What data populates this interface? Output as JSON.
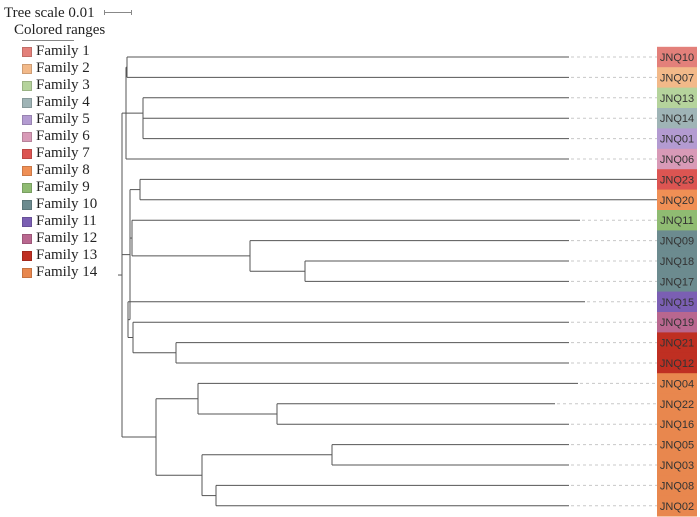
{
  "scale": {
    "label": "Tree scale 0.01"
  },
  "legend": {
    "title": "Colored ranges",
    "items": [
      {
        "label": "Family 1",
        "color": "#e3807a"
      },
      {
        "label": "Family 2",
        "color": "#f2b989"
      },
      {
        "label": "Family 3",
        "color": "#b5d39c"
      },
      {
        "label": "Family 4",
        "color": "#9fb4b6"
      },
      {
        "label": "Family 5",
        "color": "#b39bd1"
      },
      {
        "label": "Family 6",
        "color": "#d89ab7"
      },
      {
        "label": "Family 7",
        "color": "#dc5552"
      },
      {
        "label": "Family 8",
        "color": "#ef8f55"
      },
      {
        "label": "Family 9",
        "color": "#8fbb72"
      },
      {
        "label": "Family 10",
        "color": "#6c8b8f"
      },
      {
        "label": "Family 11",
        "color": "#7b5fb3"
      },
      {
        "label": "Family 12",
        "color": "#b9678f"
      },
      {
        "label": "Family 13",
        "color": "#bf2f22"
      },
      {
        "label": "Family 14",
        "color": "#e8874e"
      }
    ]
  },
  "tips": [
    {
      "label": "JNQ10",
      "family": 1
    },
    {
      "label": "JNQ07",
      "family": 2
    },
    {
      "label": "JNQ13",
      "family": 3
    },
    {
      "label": "JNQ14",
      "family": 4
    },
    {
      "label": "JNQ01",
      "family": 5
    },
    {
      "label": "JNQ06",
      "family": 6
    },
    {
      "label": "JNQ23",
      "family": 7
    },
    {
      "label": "JNQ20",
      "family": 8
    },
    {
      "label": "JNQ11",
      "family": 9
    },
    {
      "label": "JNQ09",
      "family": 10
    },
    {
      "label": "JNQ18",
      "family": 10
    },
    {
      "label": "JNQ17",
      "family": 10
    },
    {
      "label": "JNQ15",
      "family": 11
    },
    {
      "label": "JNQ19",
      "family": 12
    },
    {
      "label": "JNQ21",
      "family": 13
    },
    {
      "label": "JNQ12",
      "family": 13
    },
    {
      "label": "JNQ04",
      "family": 14
    },
    {
      "label": "JNQ22",
      "family": 14
    },
    {
      "label": "JNQ16",
      "family": 14
    },
    {
      "label": "JNQ05",
      "family": 14
    },
    {
      "label": "JNQ03",
      "family": 14
    },
    {
      "label": "JNQ08",
      "family": 14
    },
    {
      "label": "JNQ02",
      "family": 14
    }
  ]
}
